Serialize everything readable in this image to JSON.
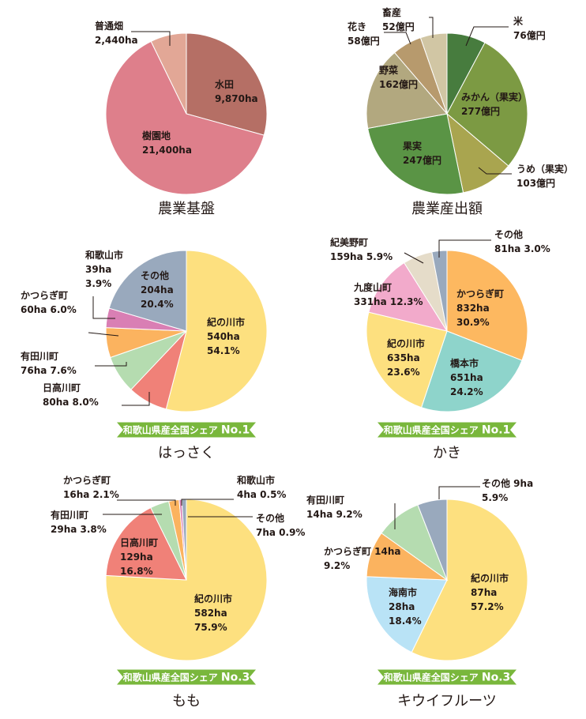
{
  "chart_data": [
    {
      "type": "pie",
      "title": "農業基盤",
      "unit": "ha",
      "slices": [
        {
          "name": "水田",
          "value": 9870,
          "value_text": "9,870ha",
          "color": "#b56f65"
        },
        {
          "name": "樹園地",
          "value": 21400,
          "value_text": "21,400ha",
          "color": "#de7f8b"
        },
        {
          "name": "普通畑",
          "value": 2440,
          "value_text": "2,440ha",
          "color": "#e2a796"
        }
      ]
    },
    {
      "type": "pie",
      "title": "農業産出額",
      "unit": "億円",
      "slices": [
        {
          "name": "米",
          "value": 76,
          "value_text": "76億円",
          "color": "#477c3e"
        },
        {
          "name": "みかん（果実）",
          "value": 277,
          "value_text": "277億円",
          "color": "#7c9a43"
        },
        {
          "name": "うめ（果実）",
          "value": 103,
          "value_text": "103億円",
          "color": "#a9a54f"
        },
        {
          "name": "果実",
          "value": 247,
          "value_text": "247億円",
          "color": "#5a9445"
        },
        {
          "name": "野菜",
          "value": 162,
          "value_text": "162億円",
          "color": "#b2a87f"
        },
        {
          "name": "花き",
          "value": 58,
          "value_text": "58億円",
          "color": "#b79a6d"
        },
        {
          "name": "畜産",
          "value": 52,
          "value_text": "52億円",
          "color": "#d1c6a4"
        }
      ]
    },
    {
      "type": "pie",
      "title": "はっさく",
      "badge_prefix": "和歌山県産全国シェア",
      "badge_rank": "No.1",
      "slices": [
        {
          "name": "紀の川市",
          "value": 540,
          "value_text": "540ha",
          "pct": "54.1%",
          "color": "#fde07f"
        },
        {
          "name": "日高川町",
          "value": 80,
          "value_text": "80ha",
          "pct": "8.0%",
          "color": "#f08178"
        },
        {
          "name": "有田川町",
          "value": 76,
          "value_text": "76ha",
          "pct": "7.6%",
          "color": "#b5dcb0"
        },
        {
          "name": "かつらぎ町",
          "value": 60,
          "value_text": "60ha",
          "pct": "6.0%",
          "color": "#fbb35f"
        },
        {
          "name": "和歌山市",
          "value": 39,
          "value_text": "39ha",
          "pct": "3.9%",
          "color": "#d97fb4"
        },
        {
          "name": "その他",
          "value": 204,
          "value_text": "204ha",
          "pct": "20.4%",
          "color": "#99a9bd"
        }
      ]
    },
    {
      "type": "pie",
      "title": "かき",
      "badge_prefix": "和歌山県産全国シェア",
      "badge_rank": "No.1",
      "slices": [
        {
          "name": "かつらぎ町",
          "value": 832,
          "value_text": "832ha",
          "pct": "30.9%",
          "color": "#fdb860"
        },
        {
          "name": "橋本市",
          "value": 651,
          "value_text": "651ha",
          "pct": "24.2%",
          "color": "#8ed4cb"
        },
        {
          "name": "紀の川市",
          "value": 635,
          "value_text": "635ha",
          "pct": "23.6%",
          "color": "#fde07f"
        },
        {
          "name": "九度山町",
          "value": 331,
          "value_text": "331ha",
          "pct": "12.3%",
          "color": "#f2aacb"
        },
        {
          "name": "紀美野町",
          "value": 159,
          "value_text": "159ha",
          "pct": "5.9%",
          "color": "#e5dcc9"
        },
        {
          "name": "その他",
          "value": 81,
          "value_text": "81ha",
          "pct": "3.0%",
          "color": "#99a9bd"
        }
      ]
    },
    {
      "type": "pie",
      "title": "もも",
      "badge_prefix": "和歌山県産全国シェア",
      "badge_rank": "No.3",
      "slices": [
        {
          "name": "紀の川市",
          "value": 582,
          "value_text": "582ha",
          "pct": "75.9%",
          "color": "#fde07f"
        },
        {
          "name": "日高川町",
          "value": 129,
          "value_text": "129ha",
          "pct": "16.8%",
          "color": "#f08178"
        },
        {
          "name": "有田川町",
          "value": 29,
          "value_text": "29ha",
          "pct": "3.8%",
          "color": "#b5dcb0"
        },
        {
          "name": "かつらぎ町",
          "value": 16,
          "value_text": "16ha",
          "pct": "2.1%",
          "color": "#fbb35f"
        },
        {
          "name": "和歌山市",
          "value": 4,
          "value_text": "4ha",
          "pct": "0.5%",
          "color": "#d97fb4"
        },
        {
          "name": "その他",
          "value": 7,
          "value_text": "7ha",
          "pct": "0.9%",
          "color": "#99a9bd"
        }
      ]
    },
    {
      "type": "pie",
      "title": "キウイフルーツ",
      "badge_prefix": "和歌山県産全国シェア",
      "badge_rank": "No.3",
      "slices": [
        {
          "name": "紀の川市",
          "value": 87,
          "value_text": "87ha",
          "pct": "57.2%",
          "color": "#fde07f"
        },
        {
          "name": "海南市",
          "value": 28,
          "value_text": "28ha",
          "pct": "18.4%",
          "color": "#b9e3f6"
        },
        {
          "name": "かつらぎ町",
          "value": 14,
          "value_text": "14ha",
          "pct": "9.2%",
          "color": "#fbb35f"
        },
        {
          "name": "有田川町",
          "value": 14,
          "value_text": "14ha",
          "pct": "9.2%",
          "color": "#b5dcb0"
        },
        {
          "name": "その他",
          "value": 9,
          "value_text": "9ha",
          "pct": "5.9%",
          "color": "#99a9bd"
        }
      ]
    }
  ],
  "colors": {
    "badge": "#79b73c",
    "text": "#231815",
    "leader_line": "#231815"
  }
}
